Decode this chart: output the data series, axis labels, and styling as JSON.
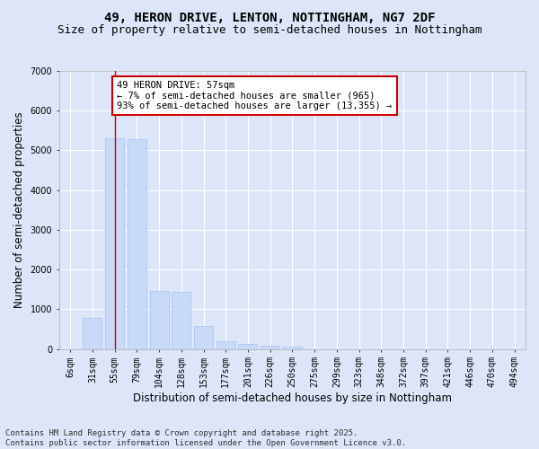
{
  "title_line1": "49, HERON DRIVE, LENTON, NOTTINGHAM, NG7 2DF",
  "title_line2": "Size of property relative to semi-detached houses in Nottingham",
  "xlabel": "Distribution of semi-detached houses by size in Nottingham",
  "ylabel": "Number of semi-detached properties",
  "categories": [
    "6sqm",
    "31sqm",
    "55sqm",
    "79sqm",
    "104sqm",
    "128sqm",
    "153sqm",
    "177sqm",
    "201sqm",
    "226sqm",
    "250sqm",
    "275sqm",
    "299sqm",
    "323sqm",
    "348sqm",
    "372sqm",
    "397sqm",
    "421sqm",
    "446sqm",
    "470sqm",
    "494sqm"
  ],
  "bar_values": [
    0,
    780,
    5300,
    5280,
    1450,
    1430,
    580,
    200,
    130,
    80,
    50,
    0,
    0,
    0,
    0,
    0,
    0,
    0,
    0,
    0,
    0
  ],
  "bar_color": "#c9daf8",
  "bar_edgecolor": "#a4c2f4",
  "annotation_text": "49 HERON DRIVE: 57sqm\n← 7% of semi-detached houses are smaller (965)\n93% of semi-detached houses are larger (13,355) →",
  "annotation_box_facecolor": "#ffffff",
  "annotation_box_edgecolor": "#cc0000",
  "ylim": [
    0,
    7000
  ],
  "yticks": [
    0,
    1000,
    2000,
    3000,
    4000,
    5000,
    6000,
    7000
  ],
  "vline_color": "#cc0000",
  "vline_x": 2,
  "footer_line1": "Contains HM Land Registry data © Crown copyright and database right 2025.",
  "footer_line2": "Contains public sector information licensed under the Open Government Licence v3.0.",
  "bg_color": "#dce6f8",
  "plot_bg_color": "#dce6f8",
  "grid_color": "#ffffff",
  "title_fontsize": 10,
  "subtitle_fontsize": 9,
  "axis_label_fontsize": 8.5,
  "tick_fontsize": 7,
  "footer_fontsize": 6.5,
  "annotation_fontsize": 7.5
}
